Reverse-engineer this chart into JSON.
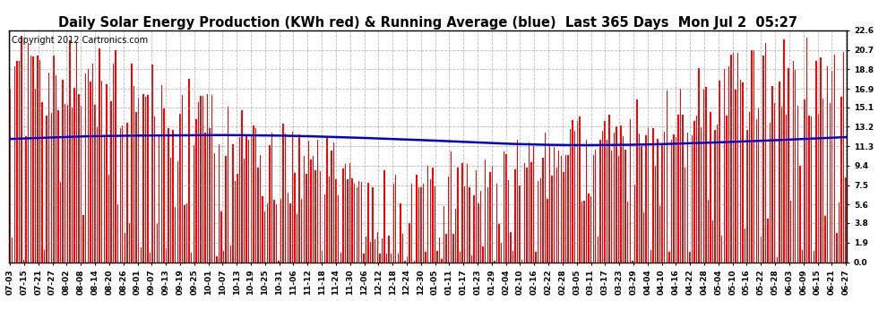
{
  "title": "Daily Solar Energy Production (KWh red) & Running Average (blue)  Last 365 Days  Mon Jul 2  05:27",
  "copyright": "Copyright 2012 Cartronics.com",
  "yticks": [
    0.0,
    1.9,
    3.8,
    5.6,
    7.5,
    9.4,
    11.3,
    13.2,
    15.1,
    16.9,
    18.8,
    20.7,
    22.6
  ],
  "ylim": [
    0.0,
    22.6
  ],
  "bar_color": "#ff0000",
  "avg_color": "#0000cc",
  "background_color": "#ffffff",
  "grid_color": "#888888",
  "title_fontsize": 10.5,
  "copyright_fontsize": 7,
  "tick_label_fontsize": 6.5,
  "n_days": 365,
  "x_labels": [
    "07-03",
    "07-15",
    "07-21",
    "07-27",
    "08-02",
    "08-08",
    "08-14",
    "08-20",
    "08-26",
    "09-01",
    "09-07",
    "09-13",
    "09-19",
    "09-25",
    "10-01",
    "10-07",
    "10-13",
    "10-19",
    "10-25",
    "10-31",
    "11-06",
    "11-12",
    "11-18",
    "11-24",
    "11-30",
    "12-06",
    "12-12",
    "12-18",
    "12-24",
    "12-30",
    "01-05",
    "01-11",
    "01-17",
    "01-23",
    "01-29",
    "02-04",
    "02-10",
    "02-16",
    "02-22",
    "02-28",
    "03-05",
    "03-11",
    "03-17",
    "03-23",
    "03-29",
    "04-04",
    "04-10",
    "04-16",
    "04-22",
    "04-28",
    "05-04",
    "05-10",
    "05-16",
    "05-22",
    "05-28",
    "06-03",
    "06-09",
    "06-15",
    "06-21",
    "06-27"
  ],
  "avg_values": [
    12.0,
    12.05,
    12.1,
    12.15,
    12.2,
    12.25,
    12.28,
    12.3,
    12.32,
    12.33,
    12.34,
    12.35,
    12.36,
    12.37,
    12.38,
    12.38,
    12.37,
    12.36,
    12.35,
    12.33,
    12.3,
    12.27,
    12.23,
    12.19,
    12.15,
    12.1,
    12.05,
    12.0,
    11.95,
    11.9,
    11.84,
    11.78,
    11.72,
    11.66,
    11.6,
    11.54,
    11.5,
    11.46,
    11.43,
    11.41,
    11.4,
    11.4,
    11.41,
    11.42,
    11.44,
    11.47,
    11.5,
    11.54,
    11.58,
    11.62,
    11.67,
    11.72,
    11.77,
    11.82,
    11.88,
    11.94,
    12.0,
    12.06,
    12.12,
    12.18
  ]
}
